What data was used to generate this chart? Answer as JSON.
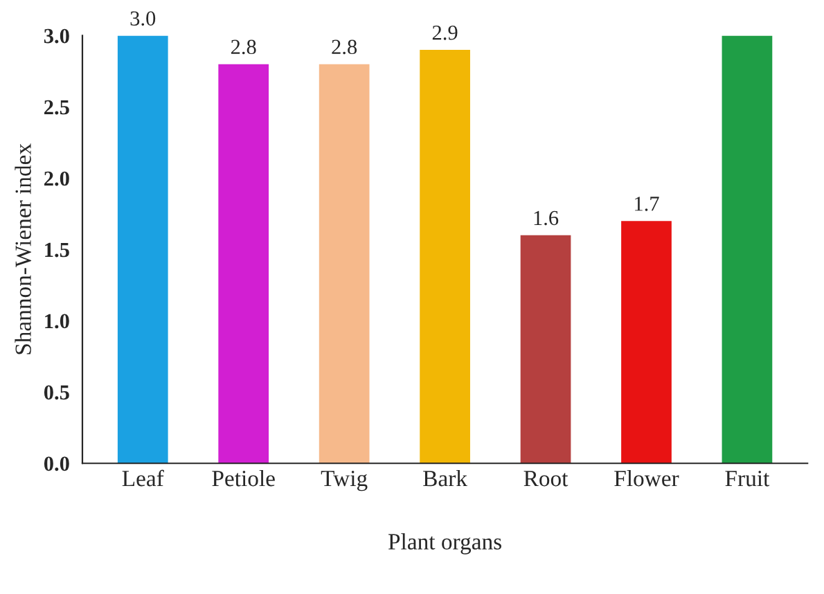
{
  "chart_data": {
    "type": "bar",
    "xlabel": "Plant organs",
    "ylabel": "Shannon-Wiener index",
    "categories": [
      "Leaf",
      "Petiole",
      "Twig",
      "Bark",
      "Root",
      "Flower",
      "Fruit"
    ],
    "values": [
      3.0,
      2.8,
      2.8,
      2.9,
      1.6,
      1.7,
      3.0
    ],
    "colors": [
      "#1ba1e2",
      "#d21fd2",
      "#f6b98b",
      "#f2b705",
      "#b5403f",
      "#e81313",
      "#1f9e46"
    ],
    "value_labels": [
      "3.0",
      "2.8",
      "2.8",
      "2.9",
      "1.6",
      "1.7",
      null
    ],
    "ylim": [
      0,
      3.0
    ],
    "yticks": [
      {
        "value": 0,
        "label": "0.0"
      },
      {
        "value": 0.5,
        "label": "0.5"
      },
      {
        "value": 1.0,
        "label": "1.0"
      },
      {
        "value": 1.5,
        "label": "1.5"
      },
      {
        "value": 2.0,
        "label": "2.0"
      },
      {
        "value": 2.5,
        "label": "2.5"
      },
      {
        "value": 3.0,
        "label": "3.0"
      }
    ],
    "grid": false
  }
}
